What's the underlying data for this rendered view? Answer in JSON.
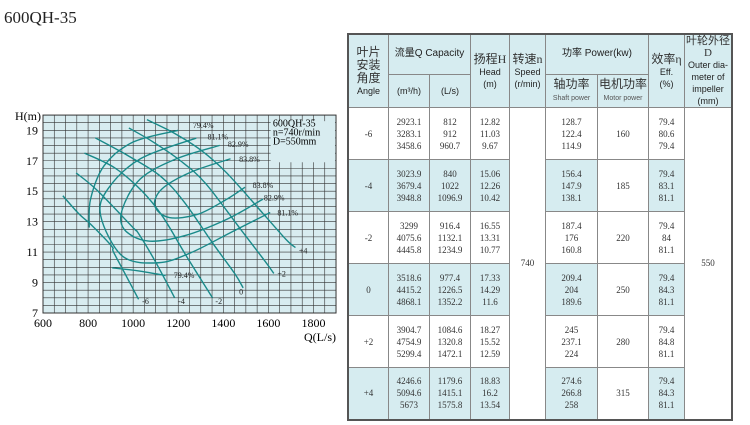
{
  "title": "600QH-35",
  "chart_data": {
    "type": "line",
    "xlabel": "Q(L/s)",
    "ylabel": "H(m)",
    "xlim": [
      600,
      1900
    ],
    "ylim": [
      7,
      20
    ],
    "xticks": [
      600,
      800,
      1000,
      1200,
      1400,
      1600,
      1800
    ],
    "yticks": [
      7,
      9,
      11,
      13,
      15,
      17,
      19
    ],
    "grid": true,
    "inset": [
      "600QH-35",
      "n=740r/min",
      "D=550mm"
    ],
    "line_color": "#1a8a8a",
    "grid_color": "#333333",
    "background": "#d8ecf0",
    "head_curves": [
      {
        "name": "-6",
        "points": [
          [
            688,
            14.7
          ],
          [
            760,
            13.5
          ],
          [
            812,
            12.82
          ],
          [
            904,
            11.4
          ],
          [
            912,
            11.03
          ],
          [
            960.7,
            9.67
          ],
          [
            1024,
            7.9
          ]
        ],
        "label_at": [
          1040,
          7.8
        ]
      },
      {
        "name": "-4",
        "points": [
          [
            747,
            16.2
          ],
          [
            840,
            15.06
          ],
          [
            1000,
            12.6
          ],
          [
            1022,
            12.26
          ],
          [
            1096.9,
            10.42
          ],
          [
            1184,
            8.0
          ]
        ],
        "label_at": [
          1200,
          7.8
        ]
      },
      {
        "name": "-2",
        "points": [
          [
            784,
            17.5
          ],
          [
            916.4,
            16.55
          ],
          [
            1040,
            15.0
          ],
          [
            1132.1,
            13.31
          ],
          [
            1234.9,
            10.77
          ],
          [
            1352,
            8.0
          ]
        ],
        "label_at": [
          1365,
          7.8
        ]
      },
      {
        "name": "0",
        "points": [
          [
            832,
            18.5
          ],
          [
            977.4,
            17.33
          ],
          [
            1120,
            16.0
          ],
          [
            1226.5,
            14.29
          ],
          [
            1352.2,
            11.6
          ],
          [
            1450,
            9.6
          ],
          [
            1488,
            8.65
          ]
        ],
        "label_at": [
          1470,
          8.4
        ]
      },
      {
        "name": "+2",
        "points": [
          [
            981,
            19.15
          ],
          [
            1084.6,
            18.27
          ],
          [
            1210,
            17.0
          ],
          [
            1320.8,
            15.52
          ],
          [
            1472.1,
            12.59
          ],
          [
            1580,
            10.5
          ],
          [
            1624,
            9.6
          ]
        ],
        "label_at": [
          1640,
          9.6
        ]
      },
      {
        "name": "+4",
        "points": [
          [
            1061,
            19.7
          ],
          [
            1179.6,
            18.83
          ],
          [
            1300,
            17.7
          ],
          [
            1415.1,
            16.2
          ],
          [
            1575.8,
            13.54
          ],
          [
            1680,
            11.8
          ],
          [
            1720,
            11.3
          ]
        ],
        "label_at": [
          1735,
          11.1
        ]
      }
    ],
    "efficiency_curves": [
      {
        "name": "79.4%",
        "points": [
          [
            1200,
            19.0
          ],
          [
            1000,
            18.23
          ],
          [
            872,
            16.69
          ],
          [
            811,
            14.48
          ],
          [
            805,
            12.61
          ]
        ],
        "label_at": [
          1265,
          19.35
        ]
      },
      {
        "name": "79.4%",
        "points": [
          [
            907,
            9.97
          ],
          [
            1032,
            9.75
          ],
          [
            1144,
            9.46
          ]
        ],
        "label_at": [
          1180,
          9.5
        ]
      },
      {
        "name": "81.1%",
        "points": [
          [
            1280,
            18.49
          ],
          [
            1032,
            17.13
          ],
          [
            888,
            15.15
          ],
          [
            856,
            13.38
          ],
          [
            952,
            10.74
          ],
          [
            1112,
            10.3
          ],
          [
            1256,
            10.96
          ],
          [
            1432,
            12.28
          ],
          [
            1608,
            13.6
          ]
        ],
        "label_at": [
          1330,
          18.6
        ],
        "label2_at": [
          1640,
          13.6
        ]
      },
      {
        "name": "82.9%",
        "points": [
          [
            1384,
            18.01
          ],
          [
            1192,
            17.13
          ],
          [
            1032,
            15.81
          ],
          [
            952,
            13.82
          ],
          [
            960,
            12.5
          ],
          [
            1064,
            11.73
          ],
          [
            1224,
            12.06
          ],
          [
            1416,
            13.16
          ],
          [
            1576,
            14.48
          ]
        ],
        "label_at": [
          1420,
          18.1
        ],
        "label2_at": [
          1580,
          14.6
        ]
      },
      {
        "name": "83.8%",
        "points": [
          [
            1432,
            17.13
          ],
          [
            1256,
            16.25
          ],
          [
            1128,
            15.15
          ],
          [
            1096,
            14.04
          ],
          [
            1160,
            13.27
          ],
          [
            1288,
            13.49
          ],
          [
            1416,
            14.48
          ],
          [
            1496,
            15.26
          ]
        ],
        "label_at": [
          1470,
          17.1
        ],
        "label2_at": [
          1530,
          15.4
        ]
      }
    ]
  },
  "table": {
    "headers": {
      "angle": [
        "叶片",
        "安装",
        "角度",
        "Angle"
      ],
      "capacity": "流量Q Capacity",
      "m3h": "(m³/h)",
      "ls": "(L/s)",
      "head": [
        "扬程H",
        "Head",
        "(m)"
      ],
      "speed": [
        "转速n",
        "Speed",
        "(r/min)"
      ],
      "power": "功率 Power(kw)",
      "shaft_cn": "轴功率",
      "shaft_en": "Shaft power",
      "motor_cn": "电机功率",
      "motor_en": "Motor power",
      "eff": [
        "效率η",
        "Eff.",
        "(%)"
      ],
      "dia": [
        "叶轮外径D",
        "Outer dia-",
        "meter of",
        "impeller",
        "(mm)"
      ]
    },
    "speed": "740",
    "diameter": "550",
    "rows": [
      {
        "angle": "-6",
        "m3h": [
          "2923.1",
          "3283.1",
          "3458.6"
        ],
        "ls": [
          "812",
          "912",
          "960.7"
        ],
        "head": [
          "12.82",
          "11.03",
          "9.67"
        ],
        "shaft": [
          "128.7",
          "122.4",
          "114.9"
        ],
        "motor": "160",
        "eff": [
          "79.4",
          "80.6",
          "79.4"
        ]
      },
      {
        "angle": "-4",
        "m3h": [
          "3023.9",
          "3679.4",
          "3948.8"
        ],
        "ls": [
          "840",
          "1022",
          "1096.9"
        ],
        "head": [
          "15.06",
          "12.26",
          "10.42"
        ],
        "shaft": [
          "156.4",
          "147.9",
          "138.1"
        ],
        "motor": "185",
        "eff": [
          "79.4",
          "83.1",
          "81.1"
        ]
      },
      {
        "angle": "-2",
        "m3h": [
          "3299",
          "4075.6",
          "4445.8"
        ],
        "ls": [
          "916.4",
          "1132.1",
          "1234.9"
        ],
        "head": [
          "16.55",
          "13.31",
          "10.77"
        ],
        "shaft": [
          "187.4",
          "176",
          "160.8"
        ],
        "motor": "220",
        "eff": [
          "79.4",
          "84",
          "81.1"
        ]
      },
      {
        "angle": "0",
        "m3h": [
          "3518.6",
          "4415.2",
          "4868.1"
        ],
        "ls": [
          "977.4",
          "1226.5",
          "1352.2"
        ],
        "head": [
          "17.33",
          "14.29",
          "11.6"
        ],
        "shaft": [
          "209.4",
          "204",
          "189.6"
        ],
        "motor": "250",
        "eff": [
          "79.4",
          "84.3",
          "81.1"
        ]
      },
      {
        "angle": "+2",
        "m3h": [
          "3904.7",
          "4754.9",
          "5299.4"
        ],
        "ls": [
          "1084.6",
          "1320.8",
          "1472.1"
        ],
        "head": [
          "18.27",
          "15.52",
          "12.59"
        ],
        "shaft": [
          "245",
          "237.1",
          "224"
        ],
        "motor": "280",
        "eff": [
          "79.4",
          "84.8",
          "81.1"
        ]
      },
      {
        "angle": "+4",
        "m3h": [
          "4246.6",
          "5094.6",
          "5673"
        ],
        "ls": [
          "1179.6",
          "1415.1",
          "1575.8"
        ],
        "head": [
          "18.83",
          "16.2",
          "13.54"
        ],
        "shaft": [
          "274.6",
          "266.8",
          "258"
        ],
        "motor": "315",
        "eff": [
          "79.4",
          "84.3",
          "81.1"
        ]
      }
    ]
  }
}
